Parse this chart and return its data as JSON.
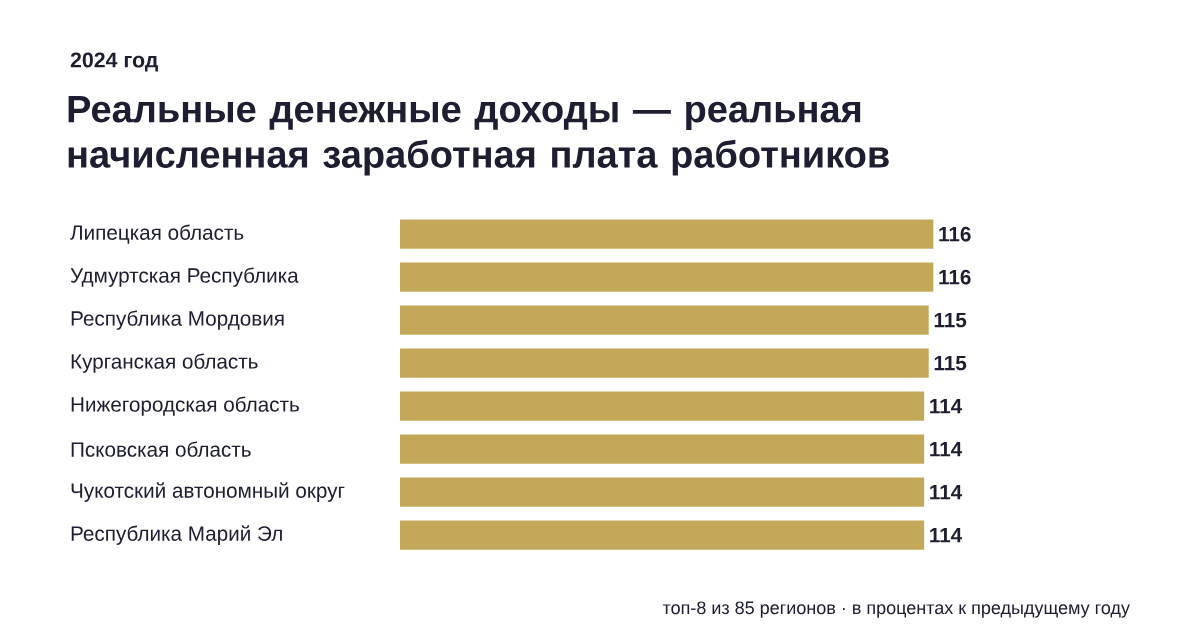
{
  "chart_data": {
    "type": "bar",
    "orientation": "horizontal",
    "title": "Реальные денежные доходы — реальная начисленная заработная плата работников",
    "subtitle": "2024 год",
    "categories": [
      "Липецкая область",
      "Удмуртская Республика",
      "Республика Мордовия",
      "Курганская область",
      "Нижегородская область",
      "Псковская область",
      "Чукотский автономный округ",
      "Республика Марий Эл"
    ],
    "values": [
      116,
      116,
      115,
      115,
      114,
      114,
      114,
      114
    ],
    "color": "#c4a85a",
    "data_labels": true,
    "annotations": [
      "топ-8 из 85 регионов · в процентах к предыдущему году"
    ]
  }
}
